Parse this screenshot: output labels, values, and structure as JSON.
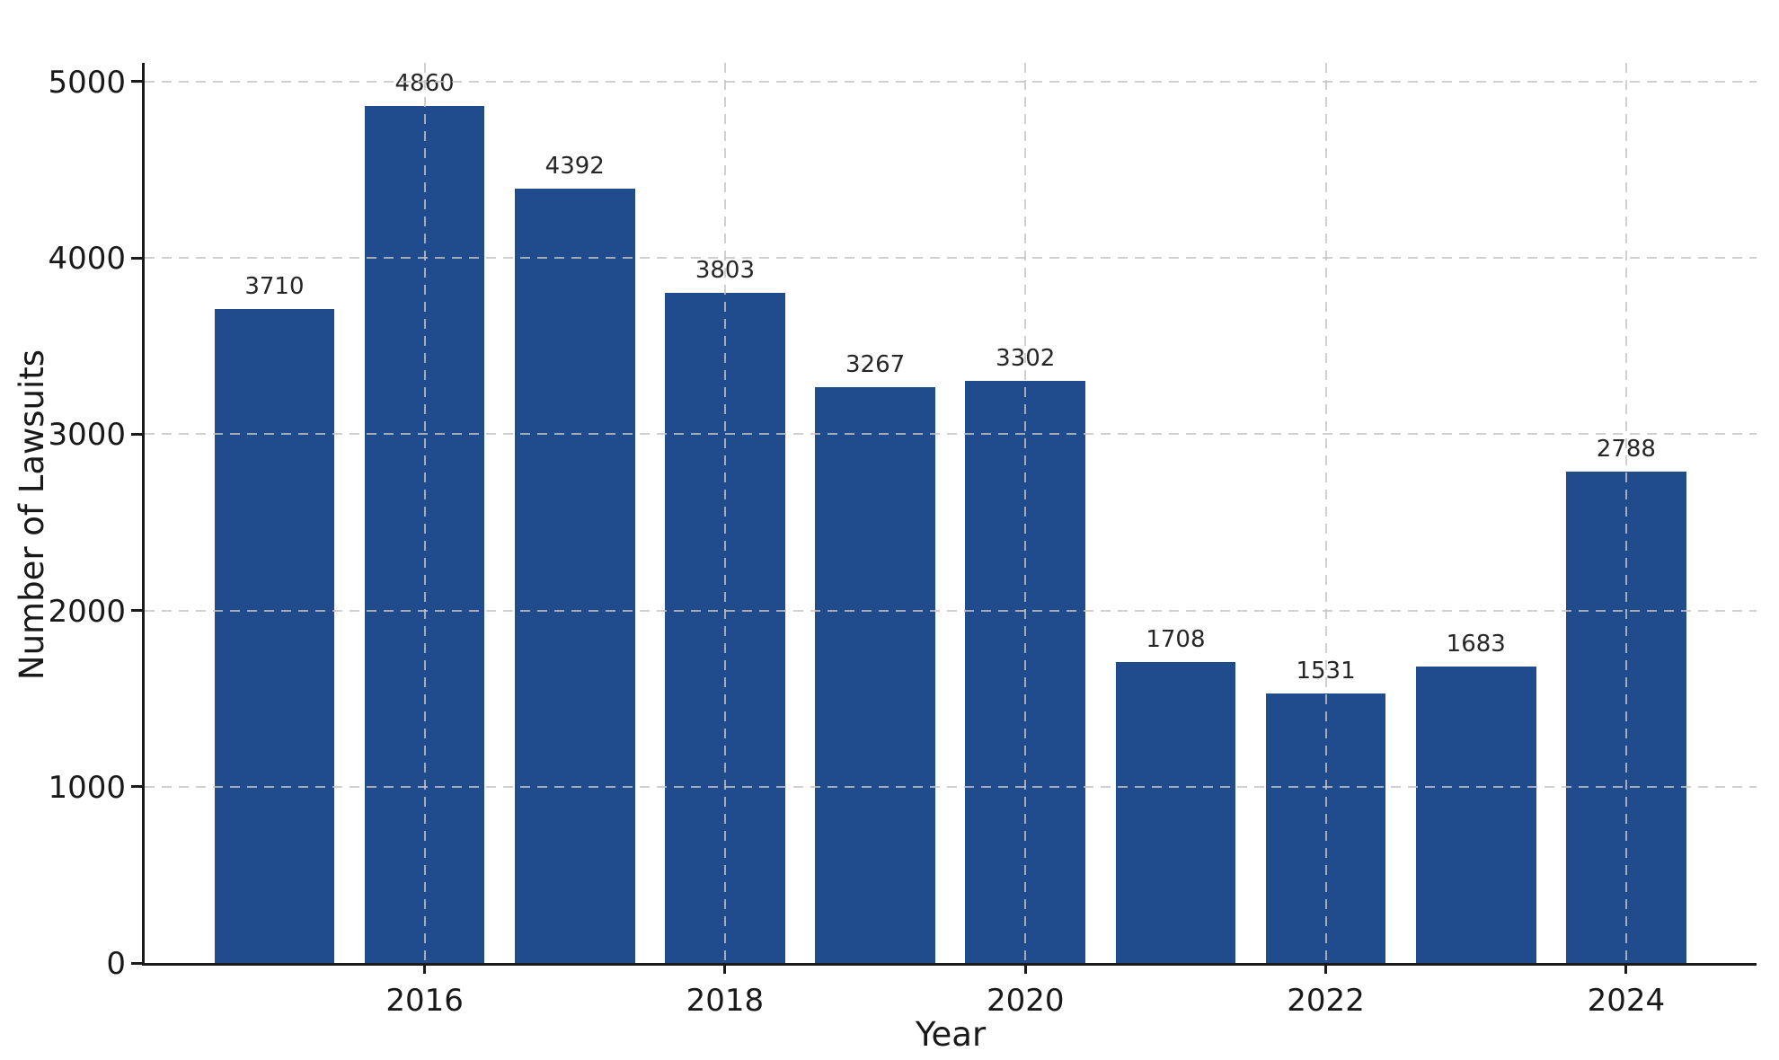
{
  "chart_data": {
    "type": "bar",
    "x": [
      2015,
      2016,
      2017,
      2018,
      2019,
      2020,
      2021,
      2022,
      2023,
      2024
    ],
    "values": [
      3710,
      4860,
      4392,
      3803,
      3267,
      3302,
      1708,
      1531,
      1683,
      2788
    ],
    "bar_value_labels": [
      "3710",
      "4860",
      "4392",
      "3803",
      "3267",
      "3302",
      "1708",
      "1531",
      "1683",
      "2788"
    ],
    "xlabel": "Year",
    "ylabel": "Number of Lawsuits",
    "xticks": [
      2016,
      2018,
      2020,
      2022,
      2024
    ],
    "xtick_labels": [
      "2016",
      "2018",
      "2020",
      "2022",
      "2024"
    ],
    "yticks": [
      0,
      1000,
      2000,
      3000,
      4000,
      5000
    ],
    "ytick_labels": [
      "0",
      "1000",
      "2000",
      "3000",
      "4000",
      "5000"
    ],
    "xlim": [
      2014.136,
      2024.868
    ],
    "ylim": [
      0,
      5106
    ],
    "bar_width_data_units": 0.8,
    "grid": "dashed-both-axes-drawn-over-bars",
    "legend": "none",
    "colors": {
      "bar": "#204B8C",
      "grid": "rgba(196,196,196,0.8)",
      "text": "#191919",
      "background": "#ffffff"
    }
  }
}
